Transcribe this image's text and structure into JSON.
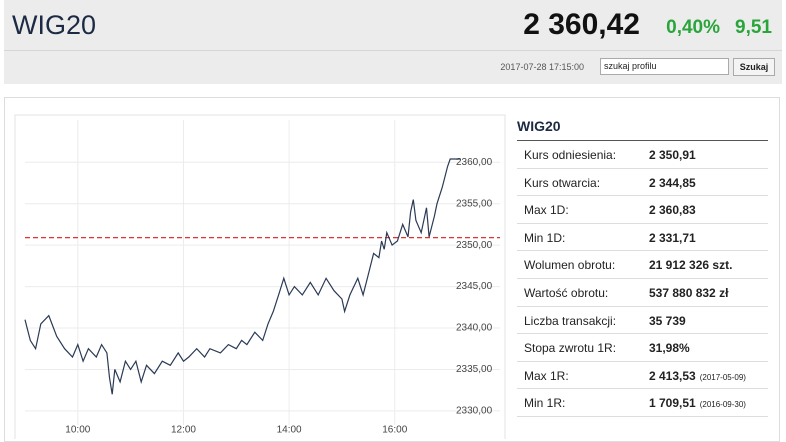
{
  "header": {
    "title": "WIG20",
    "price": "2 360,42",
    "change_pct": "0,40%",
    "change": "9,51",
    "timestamp": "2017-07-28 17:15:00",
    "search_placeholder": "szukaj profilu",
    "search_button": "Szukaj"
  },
  "chart_data": {
    "type": "line",
    "x": [
      9.0,
      9.1,
      9.2,
      9.3,
      9.45,
      9.6,
      9.75,
      9.9,
      10.0,
      10.1,
      10.2,
      10.35,
      10.45,
      10.55,
      10.6,
      10.65,
      10.7,
      10.8,
      10.9,
      11.0,
      11.1,
      11.2,
      11.3,
      11.45,
      11.6,
      11.75,
      11.9,
      12.0,
      12.1,
      12.25,
      12.4,
      12.5,
      12.7,
      12.85,
      13.0,
      13.1,
      13.2,
      13.35,
      13.5,
      13.6,
      13.7,
      13.8,
      13.9,
      14.0,
      14.1,
      14.25,
      14.4,
      14.55,
      14.7,
      14.85,
      15.0,
      15.05,
      15.15,
      15.3,
      15.4,
      15.5,
      15.6,
      15.7,
      15.75,
      15.8,
      15.85,
      15.95,
      16.05,
      16.15,
      16.25,
      16.3,
      16.35,
      16.4,
      16.5,
      16.6,
      16.65,
      16.75,
      16.8,
      16.9,
      17.0,
      17.05,
      17.25
    ],
    "series": [
      {
        "name": "WIG20",
        "color": "#2b3a55",
        "values": [
          2341,
          2338.5,
          2337.5,
          2340.5,
          2341.5,
          2339,
          2337.5,
          2336.5,
          2338,
          2336,
          2337.5,
          2336.5,
          2338,
          2337,
          2334,
          2332,
          2335,
          2333.5,
          2336,
          2335,
          2336,
          2333.5,
          2335.5,
          2334.5,
          2336,
          2335.5,
          2337,
          2336,
          2336.5,
          2337.5,
          2336.5,
          2337.5,
          2337,
          2338,
          2337.5,
          2338.5,
          2338,
          2339.5,
          2338.5,
          2340.5,
          2342,
          2344,
          2346,
          2344,
          2345,
          2344,
          2345.5,
          2344,
          2346,
          2344.5,
          2343.5,
          2342,
          2344,
          2346,
          2344,
          2346.5,
          2349,
          2348.5,
          2350.5,
          2349.5,
          2351.5,
          2350,
          2350.5,
          2352.5,
          2351,
          2354,
          2355.5,
          2353,
          2351.5,
          2354.5,
          2351,
          2353.5,
          2355,
          2357,
          2359.5,
          2360.4,
          2360.4
        ]
      }
    ],
    "reference_line": {
      "value": 2350.91,
      "color": "#e0312f"
    },
    "xlim": [
      9,
      17.25
    ],
    "ylim": [
      2328.9,
      2365.1
    ],
    "xticks": [
      {
        "value": 10,
        "label": "10:00"
      },
      {
        "value": 12,
        "label": "12:00"
      },
      {
        "value": 14,
        "label": "14:00"
      },
      {
        "value": 16,
        "label": "16:00"
      }
    ],
    "yticks": [
      {
        "value": 2330,
        "label": "2330,00"
      },
      {
        "value": 2335,
        "label": "2335,00"
      },
      {
        "value": 2340,
        "label": "2340,00"
      },
      {
        "value": 2345,
        "label": "2345,00"
      },
      {
        "value": 2350,
        "label": "2350,00"
      },
      {
        "value": 2355,
        "label": "2355,00"
      },
      {
        "value": 2360,
        "label": "2360,00"
      }
    ],
    "grid": true
  },
  "table": {
    "title": "WIG20",
    "rows": [
      {
        "label": "Kurs odniesienia:",
        "value": "2 350,91"
      },
      {
        "label": "Kurs otwarcia:",
        "value": "2 344,85"
      },
      {
        "label": "Max 1D:",
        "value": "2 360,83"
      },
      {
        "label": "Min 1D:",
        "value": "2 331,71"
      },
      {
        "label": "Wolumen obrotu:",
        "value": "21 912 326 szt."
      },
      {
        "label": "Wartość obrotu:",
        "value": "537 880 832 zł"
      },
      {
        "label": "Liczba transakcji:",
        "value": "35 739"
      },
      {
        "label": "Stopa zwrotu 1R:",
        "value": "31,98%"
      },
      {
        "label": "Max 1R:",
        "value": "2 413,53",
        "date": "(2017-05-09)"
      },
      {
        "label": "Min 1R:",
        "value": "1 709,51",
        "date": "(2016-09-30)"
      }
    ]
  }
}
